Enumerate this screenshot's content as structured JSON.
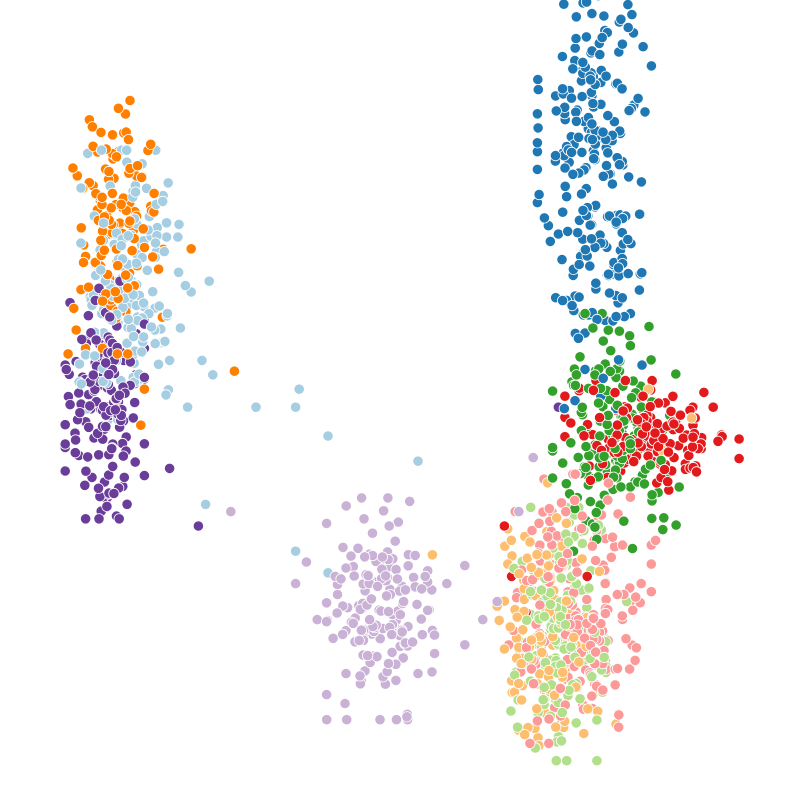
{
  "chart_data": {
    "type": "scatter",
    "title": "",
    "xlabel": "",
    "ylabel": "",
    "axes_visible": false,
    "grid": false,
    "legend": "none",
    "xlim": [
      0,
      100
    ],
    "ylim": [
      0,
      100
    ],
    "series": [
      {
        "color": "#1f78b4",
        "cluster": {
          "center": [
            77.0,
            84.0
          ],
          "spread": [
            3.6,
            16.0
          ],
          "count": 240
        },
        "points": [
          [
            74.0,
            96.0
          ],
          [
            76.5,
            94.5
          ],
          [
            73.5,
            83.0
          ],
          [
            79.5,
            80.0
          ],
          [
            76.0,
            70.0
          ],
          [
            80.0,
            64.5
          ],
          [
            78.8,
            67.3
          ],
          [
            82.0,
            62.0
          ],
          [
            76.2,
            61.8
          ],
          [
            72.5,
            69.5
          ]
        ]
      },
      {
        "color": "#33a02c",
        "cluster": {
          "center": [
            80.0,
            45.5
          ],
          "spread": [
            4.0,
            7.5
          ],
          "count": 160
        },
        "points": [
          [
            75.0,
            56.0
          ],
          [
            74.5,
            53.5
          ],
          [
            78.5,
            55.0
          ],
          [
            82.5,
            45.0
          ],
          [
            87.0,
            39.0
          ],
          [
            85.0,
            36.0
          ],
          [
            86.5,
            32.0
          ]
        ]
      },
      {
        "color": "#e31a1c",
        "cluster": {
          "center": [
            85.0,
            45.0
          ],
          "spread": [
            5.5,
            3.5
          ],
          "count": 150
        },
        "points": [
          [
            93.5,
            49.0
          ],
          [
            91.0,
            47.5
          ],
          [
            78.0,
            43.0
          ],
          [
            84.0,
            44.0
          ],
          [
            64.5,
            32.5
          ],
          [
            65.5,
            25.5
          ],
          [
            67.5,
            20.5
          ],
          [
            76.0,
            25.5
          ]
        ]
      },
      {
        "color": "#fdbf6f",
        "cluster": {
          "center": [
            70.0,
            18.5
          ],
          "spread": [
            3.5,
            7.5
          ],
          "count": 120
        },
        "points": [
          [
            84.5,
            51.5
          ],
          [
            90.5,
            47.5
          ],
          [
            86.5,
            43.0
          ],
          [
            70.5,
            38.5
          ],
          [
            54.5,
            28.5
          ],
          [
            65.5,
            11.0
          ],
          [
            80.0,
            5.0
          ]
        ]
      },
      {
        "color": "#fb9a99",
        "cluster": {
          "center": [
            75.0,
            21.0
          ],
          "spread": [
            4.5,
            8.5
          ],
          "count": 190
        },
        "points": [
          [
            85.5,
            30.5
          ],
          [
            82.0,
            36.5
          ],
          [
            70.0,
            39.0
          ],
          [
            66.0,
            34.5
          ],
          [
            83.5,
            24.5
          ],
          [
            78.5,
            24.5
          ]
        ]
      },
      {
        "color": "#b2df8a",
        "cluster": {
          "center": [
            72.0,
            17.5
          ],
          "spread": [
            3.0,
            8.0
          ],
          "count": 170
        },
        "points": [
          [
            68.0,
            13.0
          ],
          [
            75.0,
            8.5
          ],
          [
            78.0,
            12.5
          ],
          [
            81.5,
            22.0
          ],
          [
            73.5,
            33.0
          ]
        ]
      },
      {
        "color": "#cab2d6",
        "cluster": {
          "center": [
            47.5,
            21.0
          ],
          "spread": [
            3.5,
            7.0
          ],
          "count": 150
        },
        "points": [
          [
            42.5,
            12.0
          ],
          [
            45.5,
            14.5
          ],
          [
            50.5,
            22.0
          ],
          [
            53.5,
            25.5
          ],
          [
            56.5,
            24.5
          ],
          [
            59.0,
            27.0
          ],
          [
            53.0,
            19.5
          ],
          [
            48.5,
            32.5
          ],
          [
            41.0,
            25.5
          ],
          [
            37.0,
            27.5
          ],
          [
            35.5,
            24.5
          ],
          [
            26.5,
            34.5
          ],
          [
            68.5,
            42.0
          ],
          [
            66.5,
            34.5
          ],
          [
            59.0,
            16.0
          ],
          [
            61.5,
            19.5
          ],
          [
            63.5,
            22.0
          ],
          [
            52.5,
            12.0
          ],
          [
            54.5,
            18.0
          ],
          [
            38.5,
            19.5
          ],
          [
            45.0,
            33.5
          ]
        ]
      },
      {
        "color": "#a6cee3",
        "cluster": {
          "center": [
            12.5,
            66.0
          ],
          "spread": [
            3.5,
            8.5
          ],
          "count": 160
        },
        "points": [
          [
            23.5,
            66.5
          ],
          [
            21.0,
            65.0
          ],
          [
            19.5,
            60.0
          ],
          [
            22.5,
            55.5
          ],
          [
            24.0,
            53.5
          ],
          [
            20.5,
            49.0
          ],
          [
            18.0,
            55.5
          ],
          [
            30.0,
            49.0
          ],
          [
            36.0,
            51.5
          ],
          [
            40.0,
            45.0
          ],
          [
            35.5,
            49.0
          ],
          [
            52.5,
            41.5
          ],
          [
            23.0,
            35.5
          ],
          [
            35.5,
            29.0
          ],
          [
            40.0,
            26.0
          ]
        ]
      },
      {
        "color": "#ff7f00",
        "cluster": {
          "center": [
            10.5,
            74.0
          ],
          "spread": [
            3.0,
            8.0
          ],
          "count": 130
        },
        "points": [
          [
            21.0,
            71.0
          ],
          [
            17.0,
            61.5
          ],
          [
            27.0,
            54.0
          ],
          [
            14.5,
            51.5
          ],
          [
            14.0,
            46.5
          ]
        ]
      },
      {
        "color": "#6a3d9a",
        "cluster": {
          "center": [
            9.0,
            50.0
          ],
          "spread": [
            2.5,
            7.5
          ],
          "count": 170
        },
        "points": [
          [
            18.0,
            40.5
          ],
          [
            14.5,
            39.5
          ],
          [
            11.5,
            38.0
          ],
          [
            22.0,
            32.5
          ],
          [
            72.0,
            49.0
          ]
        ]
      }
    ]
  }
}
